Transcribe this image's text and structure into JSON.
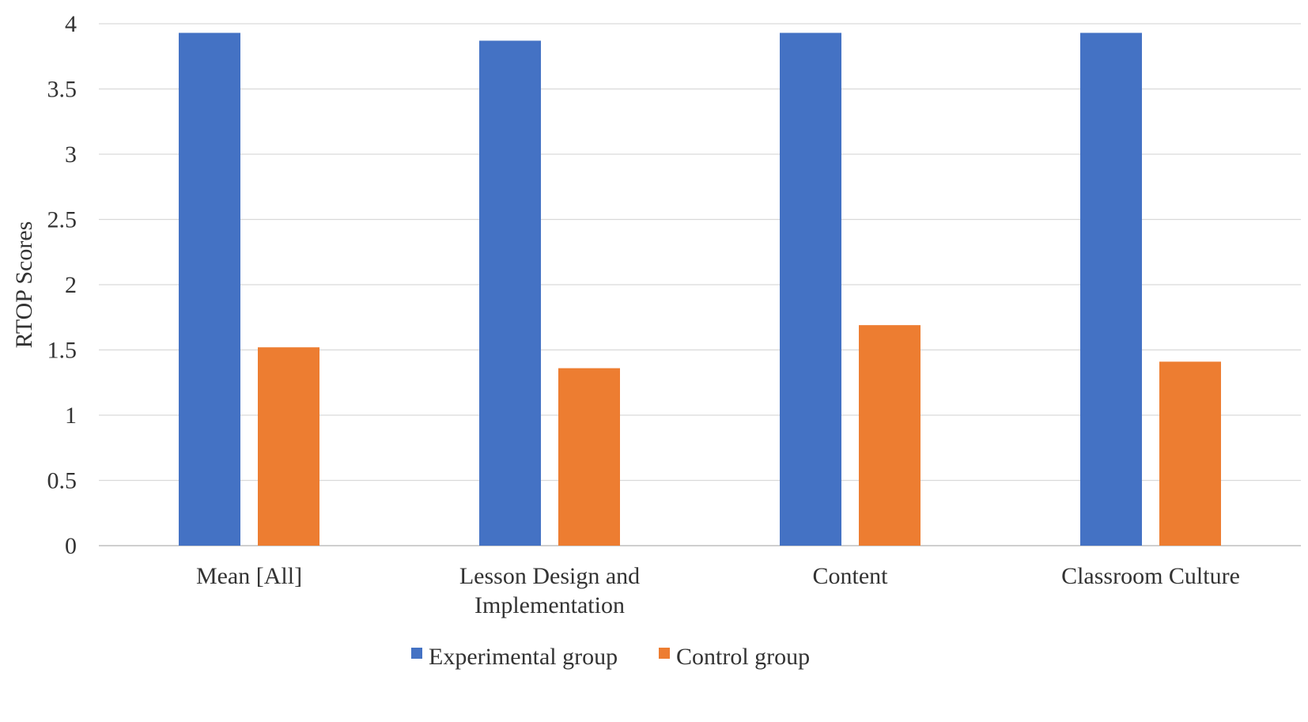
{
  "chart_data": {
    "type": "bar",
    "title": "",
    "xlabel": "",
    "ylabel": "RTOP Scores",
    "ylim": [
      0,
      4
    ],
    "yticks": [
      "0",
      "0.5",
      "1",
      "1.5",
      "2",
      "2.5",
      "3",
      "3.5",
      "4"
    ],
    "grid": true,
    "legend_position": "bottom",
    "categories": [
      [
        "Mean [All]"
      ],
      [
        "Lesson Design and",
        "Implementation"
      ],
      [
        "Content"
      ],
      [
        "Classroom Culture"
      ]
    ],
    "series": [
      {
        "name": "Experimental group",
        "color": "#4472C4",
        "values": [
          3.93,
          3.87,
          3.93,
          3.93
        ]
      },
      {
        "name": "Control group",
        "color": "#ED7D31",
        "values": [
          1.52,
          1.36,
          1.69,
          1.41
        ]
      }
    ]
  }
}
